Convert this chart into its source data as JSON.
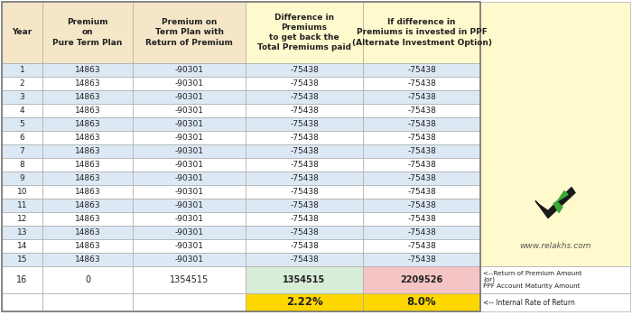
{
  "headers": [
    "Year",
    "Premium\non\nPure Term Plan",
    "Premium on\nTerm Plan with\nReturn of Premium",
    "Difference in\nPremiums\nto get back the\nTotal Premiums paid",
    "If difference in\nPremiums is invested in PPF\n(Alternate Investment Option)"
  ],
  "years": [
    1,
    2,
    3,
    4,
    5,
    6,
    7,
    8,
    9,
    10,
    11,
    12,
    13,
    14,
    15,
    16
  ],
  "col1": [
    14863,
    14863,
    14863,
    14863,
    14863,
    14863,
    14863,
    14863,
    14863,
    14863,
    14863,
    14863,
    14863,
    14863,
    14863,
    0
  ],
  "col2": [
    -90301,
    -90301,
    -90301,
    -90301,
    -90301,
    -90301,
    -90301,
    -90301,
    -90301,
    -90301,
    -90301,
    -90301,
    -90301,
    -90301,
    -90301,
    1354515
  ],
  "col3": [
    -75438,
    -75438,
    -75438,
    -75438,
    -75438,
    -75438,
    -75438,
    -75438,
    -75438,
    -75438,
    -75438,
    -75438,
    -75438,
    -75438,
    -75438,
    1354515
  ],
  "col4": [
    -75438,
    -75438,
    -75438,
    -75438,
    -75438,
    -75438,
    -75438,
    -75438,
    -75438,
    -75438,
    -75438,
    -75438,
    -75438,
    -75438,
    -75438,
    2209526
  ],
  "irr_col3": "2.22%",
  "irr_col4": "8.0%",
  "header_bg": "#F5E6C8",
  "row_bg_light": "#DCE9F5",
  "row_bg_white": "#FFFFFF",
  "col34_header_bg": "#FFFACD",
  "irr_bg": "#FFD700",
  "col4_row16_bg": "#F5C5C5",
  "col3_row16_bg": "#D8EDD8",
  "right_panel_bg": "#FFFACD",
  "website": "www.relakhs.com",
  "note1": "<--Return of Premium Amount\n(or)\nPPF Account Maturity Amount",
  "note2": "<-- Internal Rate of Return",
  "border_color": "#AAAAAA",
  "fig_width": 7.0,
  "fig_height": 3.7,
  "dpi": 100
}
